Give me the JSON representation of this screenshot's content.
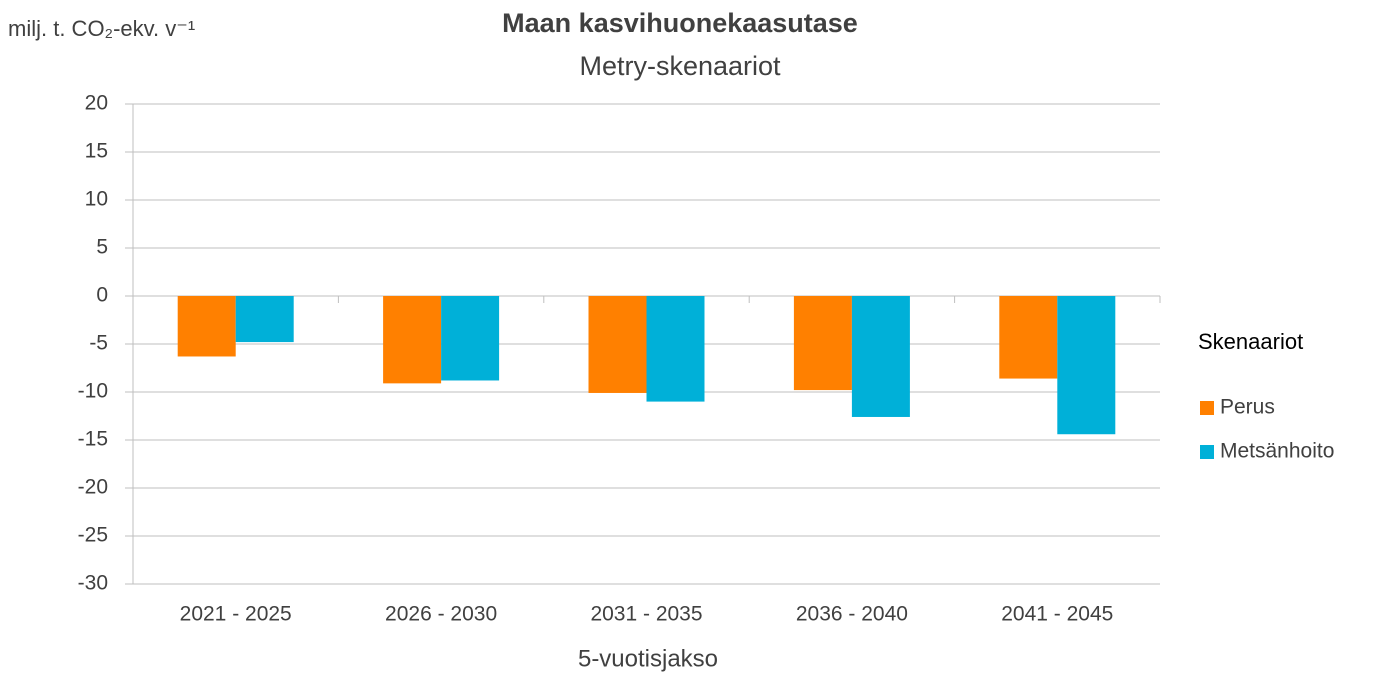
{
  "chart_data": {
    "type": "bar",
    "title": "Maan kasvihuonekaasutase",
    "subtitle": "Metry-skenaariot",
    "y_label": "milj. t. CO₂-ekv. v⁻¹",
    "x_label": "5-vuotisjakso",
    "legend_title": "Skenaariot",
    "legend": "right",
    "grid": true,
    "categories": [
      "2021 - 2025",
      "2026 - 2030",
      "2031 - 2035",
      "2036 - 2040",
      "2041 - 2045"
    ],
    "series": [
      {
        "name": "Perus",
        "color": "#ff8000",
        "values": [
          -6.3,
          -9.1,
          -10.1,
          -9.8,
          -8.6
        ]
      },
      {
        "name": "Metsänhoito",
        "color": "#00b0d8",
        "values": [
          -4.8,
          -8.8,
          -11,
          -12.6,
          -14.4
        ]
      }
    ],
    "ylim": [
      -30,
      20
    ],
    "yticks": [
      -30,
      -25,
      -20,
      -15,
      -10,
      -5,
      0,
      5,
      10,
      15,
      20
    ]
  }
}
